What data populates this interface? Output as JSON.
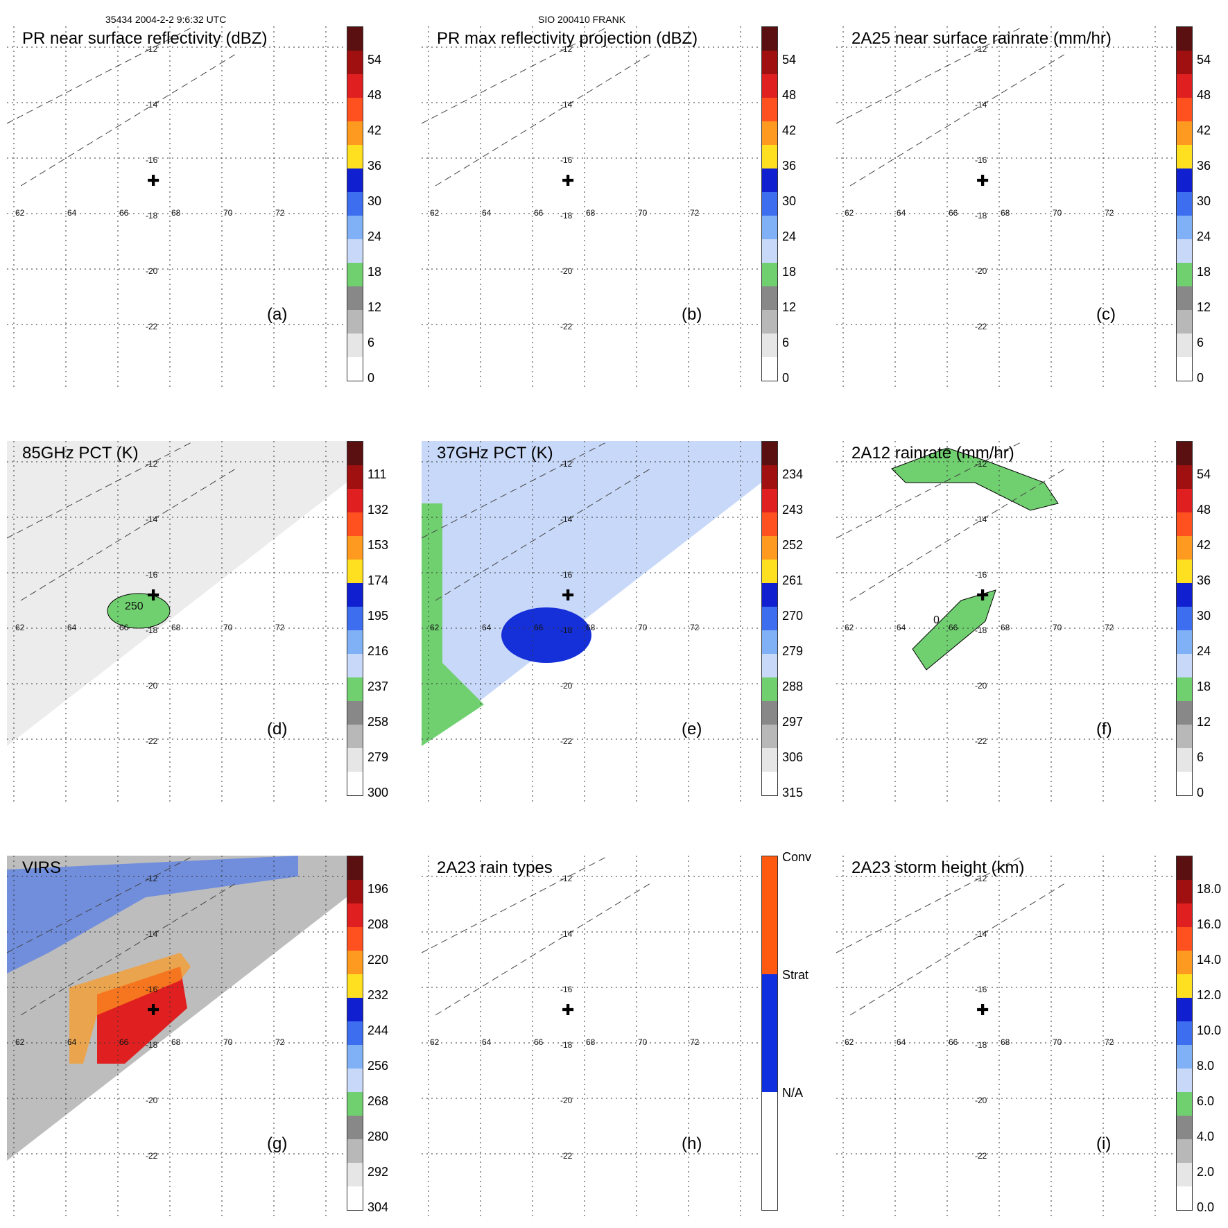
{
  "header": {
    "orbit": "35434 2004-2-2 9:6:32 UTC",
    "storm": "SIO 200410 FRANK"
  },
  "lon_labels": [
    "62",
    "64",
    "66",
    "68",
    "70",
    "72"
  ],
  "lat_labels": [
    "-12",
    "-14",
    "-16",
    "-18",
    "-20",
    "-22"
  ],
  "panels": [
    {
      "title": "PR near surface reflectivity (dBZ)",
      "letter": "(a)",
      "ticks": [
        "54",
        "48",
        "42",
        "36",
        "30",
        "24",
        "18",
        "12",
        "6",
        "0"
      ]
    },
    {
      "title": "PR max reflectivity projection (dBZ)",
      "letter": "(b)",
      "ticks": [
        "54",
        "48",
        "42",
        "36",
        "30",
        "24",
        "18",
        "12",
        "6",
        "0"
      ]
    },
    {
      "title": "2A25 near surface rainrate (mm/hr)",
      "letter": "(c)",
      "ticks": [
        "54",
        "48",
        "42",
        "36",
        "30",
        "24",
        "18",
        "12",
        "6",
        "0"
      ]
    },
    {
      "title": "85GHz PCT (K)",
      "letter": "(d)",
      "ticks": [
        "111",
        "132",
        "153",
        "174",
        "195",
        "216",
        "237",
        "258",
        "279",
        "300"
      ],
      "contour_label": "250"
    },
    {
      "title": "37GHz PCT (K)",
      "letter": "(e)",
      "ticks": [
        "234",
        "243",
        "252",
        "261",
        "270",
        "279",
        "288",
        "297",
        "306",
        "315"
      ]
    },
    {
      "title": "2A12 rainrate (mm/hr)",
      "letter": "(f)",
      "ticks": [
        "54",
        "48",
        "42",
        "36",
        "30",
        "24",
        "18",
        "12",
        "6",
        "0"
      ],
      "contour_label": "0"
    },
    {
      "title": "VIRS",
      "letter": "(g)",
      "ticks": [
        "196",
        "208",
        "220",
        "232",
        "244",
        "256",
        "268",
        "280",
        "292",
        "304"
      ]
    },
    {
      "title": "2A23 rain types",
      "letter": "(h)",
      "ticks": [
        "Conv",
        "Strat",
        "N/A"
      ]
    },
    {
      "title": "2A23 storm height (km)",
      "letter": "(i)",
      "ticks": [
        "18.0",
        "16.0",
        "14.0",
        "12.0",
        "10.0",
        "8.0",
        "6.0",
        "4.0",
        "2.0",
        "0.0"
      ]
    }
  ],
  "colors": {
    "scale": [
      "#5a1010",
      "#a01010",
      "#e02020",
      "#ff5020",
      "#ff9a20",
      "#ffe020",
      "#1020d0",
      "#3d6ef0",
      "#80b0f5",
      "#c8d8f8",
      "#70d070",
      "#888888",
      "#b8b8b8",
      "#e6e6e6",
      "#ffffff"
    ],
    "raintype": [
      "#ff5a10",
      "#1030e0",
      "#ffffff"
    ]
  }
}
